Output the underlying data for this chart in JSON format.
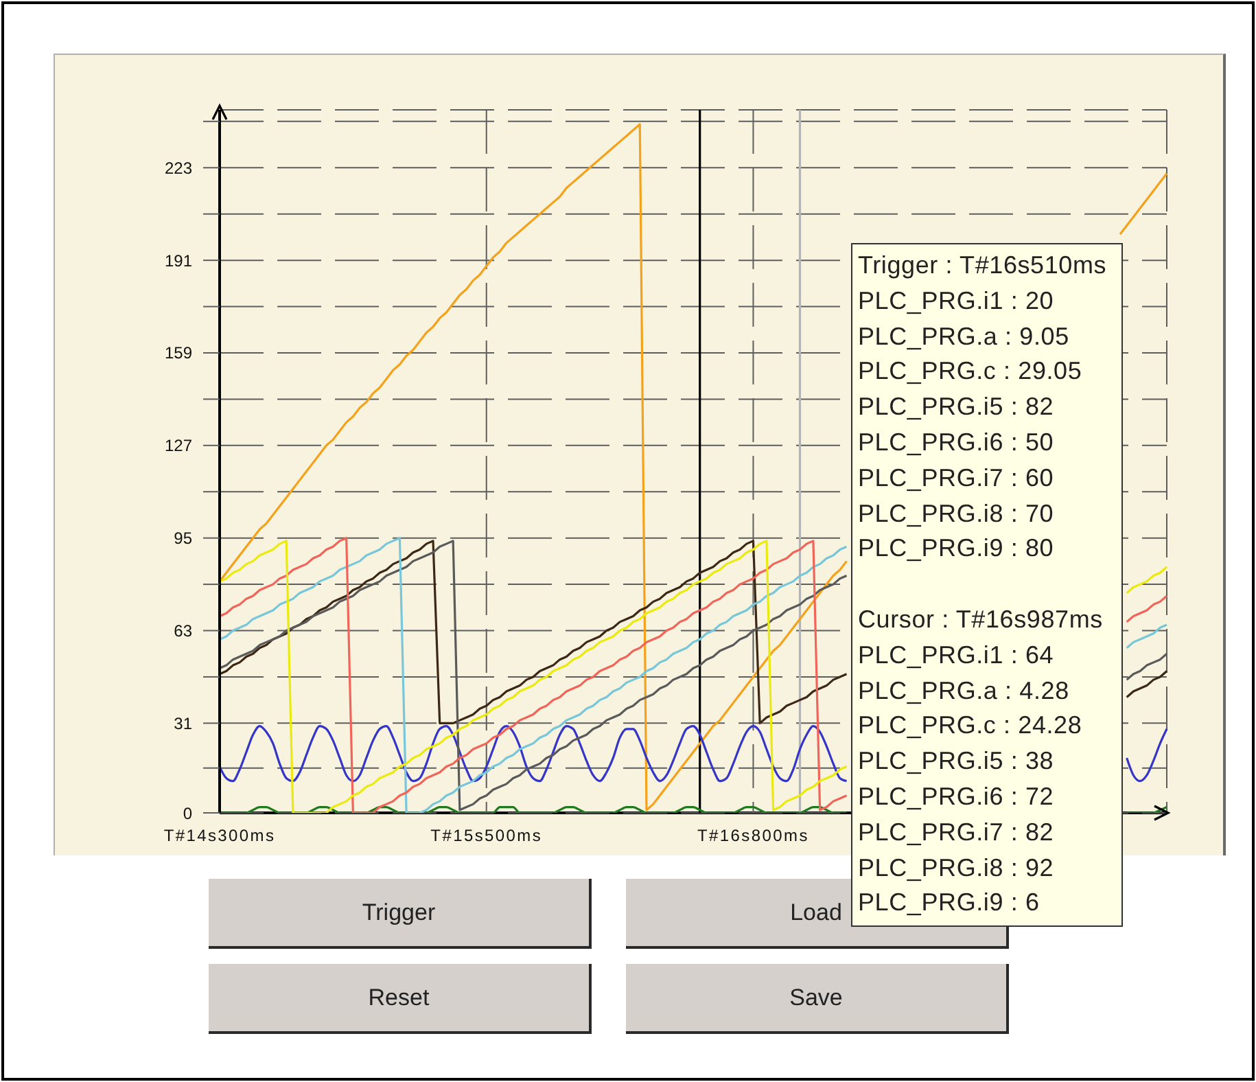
{
  "chart_data": {
    "type": "line",
    "categories": [
      "T#14s300ms",
      null,
      null,
      null,
      null,
      null,
      null,
      null,
      null,
      null,
      null,
      null,
      null,
      null,
      null,
      null,
      null,
      null,
      null,
      null,
      null,
      null,
      null,
      null,
      null,
      null,
      null,
      null,
      null,
      null,
      null,
      null,
      null,
      null,
      null,
      null,
      null,
      null,
      null,
      null,
      "T#15s500ms",
      null,
      null,
      null,
      null,
      null,
      null,
      null,
      null,
      null,
      null,
      null,
      null,
      null,
      null,
      null,
      null,
      null,
      null,
      null,
      null,
      null,
      null,
      null,
      null,
      null,
      null,
      null,
      null,
      null,
      null,
      null,
      null,
      null,
      null,
      null,
      null,
      null,
      null,
      null,
      "T#16s800ms",
      null,
      null,
      null,
      null,
      null,
      null,
      null,
      null,
      null,
      null,
      null,
      null,
      null,
      null,
      null,
      null,
      null,
      null,
      null,
      null,
      null,
      null,
      null,
      null,
      null,
      null,
      null,
      null,
      null,
      null,
      null,
      null,
      null,
      null,
      null,
      null,
      null,
      null,
      null,
      null,
      null,
      null,
      null,
      null,
      null,
      null,
      null,
      null,
      null,
      null,
      null,
      null,
      null,
      null,
      null,
      null,
      null,
      null,
      null,
      null,
      null,
      null
    ],
    "ylim": [
      0,
      243
    ],
    "yticks": [
      0,
      {
        "value": 15.5,
        "label": null
      },
      31,
      {
        "value": 47,
        "label": null
      },
      63,
      {
        "value": 79,
        "label": null
      },
      95,
      {
        "value": 111,
        "label": null
      },
      127,
      {
        "value": 143,
        "label": null
      },
      159,
      {
        "value": 175,
        "label": null
      },
      191,
      {
        "value": 207,
        "label": null
      },
      223,
      {
        "value": 239,
        "label": null
      }
    ],
    "grid": true,
    "series": [
      {
        "color": "#f4a21c",
        "values": [
          80,
          83,
          86,
          89,
          92,
          95,
          98,
          100,
          103,
          106,
          109,
          112,
          115,
          118,
          121,
          124,
          127,
          129,
          132,
          135,
          137,
          140,
          142,
          145,
          147,
          150,
          153,
          155,
          158,
          160,
          163,
          166,
          168,
          171,
          173,
          176,
          179,
          181,
          184,
          186,
          189,
          192,
          194,
          197,
          199,
          201,
          203,
          205,
          207,
          209,
          211,
          213,
          216,
          218,
          220,
          222,
          224,
          226,
          228,
          230,
          232,
          234,
          236,
          238,
          1,
          3,
          6,
          9,
          12,
          15,
          18,
          21,
          24,
          27,
          30,
          32,
          35,
          38,
          41,
          44,
          47,
          50,
          53,
          56,
          58,
          61,
          64,
          67,
          70,
          73,
          76,
          79,
          82,
          84,
          87,
          null,
          null,
          null,
          null,
          null,
          null,
          null,
          null,
          null,
          null,
          null,
          null,
          null,
          null,
          null,
          null,
          null,
          null,
          null,
          null,
          null,
          null,
          null,
          null,
          null,
          null,
          null,
          null,
          null,
          null,
          null,
          null,
          null,
          null,
          null,
          null,
          null,
          null,
          null,
          null,
          200,
          203,
          206,
          209,
          212,
          215,
          218,
          221
        ]
      },
      {
        "color": "#1f7a1f",
        "values": [
          0,
          0,
          0,
          0,
          0,
          1,
          2,
          2,
          1,
          0,
          0,
          0,
          0,
          0,
          1,
          2,
          2,
          1,
          0,
          0,
          0,
          0,
          0,
          1,
          2,
          2,
          1,
          0,
          0,
          0,
          0,
          0,
          1,
          2,
          2,
          1,
          0,
          0,
          0,
          0,
          0,
          0,
          2,
          2,
          2,
          0,
          0,
          0,
          0,
          0,
          0,
          1,
          2,
          2,
          1,
          0,
          0,
          0,
          0,
          0,
          1,
          2,
          2,
          1,
          0,
          0,
          0,
          0,
          0,
          1,
          2,
          2,
          1,
          0,
          0,
          0,
          0,
          0,
          1,
          2,
          2,
          1,
          0,
          0,
          0,
          0,
          0,
          0,
          1,
          2,
          2,
          1,
          0,
          0,
          0,
          null,
          null,
          null,
          null,
          null,
          null,
          null,
          null,
          null,
          null,
          null,
          null,
          null,
          null,
          null,
          null,
          null,
          null,
          null,
          null,
          null,
          null,
          null,
          null,
          null,
          null,
          null,
          null,
          null,
          null,
          null,
          null,
          null,
          null,
          null,
          null,
          null,
          null,
          null,
          null,
          null,
          0,
          0,
          0,
          0,
          0,
          1,
          2
        ]
      },
      {
        "color": "#3535c8",
        "values": [
          16,
          12,
          11,
          15,
          21,
          27,
          30,
          28,
          24,
          17,
          12,
          11,
          14,
          20,
          26,
          30,
          29,
          25,
          19,
          13,
          11,
          13,
          19,
          25,
          29,
          30,
          26,
          20,
          14,
          11,
          12,
          17,
          24,
          29,
          30,
          27,
          21,
          15,
          11,
          12,
          16,
          22,
          28,
          30,
          28,
          23,
          16,
          12,
          11,
          15,
          21,
          27,
          30,
          29,
          24,
          18,
          13,
          11,
          14,
          19,
          26,
          29,
          29,
          25,
          19,
          14,
          11,
          13,
          18,
          24,
          29,
          30,
          27,
          21,
          15,
          11,
          12,
          17,
          23,
          28,
          30,
          28,
          22,
          16,
          12,
          11,
          15,
          22,
          27,
          30,
          28,
          23,
          17,
          12,
          11,
          null,
          null,
          null,
          null,
          null,
          null,
          null,
          null,
          null,
          null,
          null,
          null,
          null,
          null,
          null,
          null,
          null,
          null,
          null,
          null,
          null,
          null,
          null,
          null,
          null,
          null,
          null,
          null,
          null,
          null,
          null,
          null,
          null,
          null,
          null,
          null,
          null,
          null,
          null,
          null,
          null,
          19,
          13,
          11,
          13,
          18,
          24,
          29
        ]
      },
      {
        "color": "#3c2814",
        "values": [
          48,
          49,
          51,
          52,
          54,
          55,
          57,
          58,
          60,
          61,
          62,
          64,
          65,
          67,
          68,
          70,
          71,
          73,
          74,
          75,
          77,
          78,
          80,
          81,
          83,
          84,
          86,
          87,
          88,
          90,
          91,
          93,
          94,
          31,
          31,
          31,
          32,
          33,
          34,
          36,
          37,
          39,
          40,
          42,
          43,
          44,
          46,
          47,
          49,
          50,
          51,
          53,
          54,
          56,
          57,
          59,
          60,
          61,
          63,
          64,
          66,
          67,
          68,
          70,
          71,
          73,
          74,
          76,
          77,
          78,
          80,
          81,
          83,
          84,
          85,
          87,
          88,
          90,
          91,
          93,
          94,
          31,
          33,
          34,
          35,
          37,
          38,
          39,
          40,
          42,
          43,
          44,
          46,
          47,
          48,
          null,
          null,
          null,
          null,
          null,
          null,
          null,
          null,
          null,
          null,
          null,
          null,
          null,
          null,
          null,
          null,
          null,
          null,
          null,
          null,
          null,
          null,
          null,
          null,
          null,
          null,
          null,
          null,
          null,
          null,
          null,
          null,
          null,
          null,
          null,
          null,
          null,
          null,
          null,
          null,
          null,
          40,
          42,
          43,
          44,
          46,
          47,
          49
        ]
      },
      {
        "color": "#5a5a5a",
        "values": [
          50,
          51,
          53,
          54,
          55,
          56,
          58,
          59,
          60,
          61,
          63,
          64,
          65,
          66,
          68,
          69,
          70,
          71,
          73,
          74,
          75,
          77,
          78,
          79,
          80,
          82,
          83,
          84,
          85,
          87,
          88,
          89,
          90,
          92,
          93,
          94,
          1,
          2,
          3,
          5,
          6,
          8,
          9,
          10,
          12,
          13,
          15,
          16,
          17,
          19,
          20,
          22,
          23,
          25,
          26,
          27,
          29,
          30,
          32,
          33,
          34,
          36,
          37,
          39,
          40,
          41,
          43,
          44,
          46,
          47,
          48,
          50,
          51,
          53,
          54,
          56,
          57,
          58,
          60,
          61,
          63,
          64,
          65,
          67,
          68,
          70,
          71,
          72,
          74,
          75,
          77,
          78,
          79,
          81,
          82,
          null,
          null,
          null,
          null,
          null,
          null,
          null,
          null,
          null,
          null,
          null,
          null,
          null,
          null,
          null,
          null,
          null,
          null,
          null,
          null,
          null,
          null,
          null,
          null,
          null,
          null,
          null,
          null,
          null,
          null,
          null,
          null,
          null,
          null,
          null,
          null,
          null,
          null,
          null,
          null,
          null,
          46,
          48,
          49,
          51,
          52,
          53,
          55
        ]
      },
      {
        "color": "#78c6da",
        "values": [
          60,
          61,
          63,
          64,
          65,
          67,
          68,
          69,
          70,
          72,
          73,
          74,
          76,
          77,
          78,
          80,
          81,
          82,
          84,
          85,
          86,
          87,
          89,
          90,
          91,
          93,
          94,
          95,
          0,
          0,
          0,
          1,
          3,
          4,
          6,
          7,
          9,
          10,
          11,
          13,
          14,
          16,
          17,
          19,
          20,
          22,
          23,
          24,
          26,
          27,
          29,
          30,
          32,
          33,
          34,
          36,
          37,
          39,
          40,
          42,
          43,
          45,
          46,
          47,
          49,
          50,
          52,
          53,
          55,
          56,
          57,
          59,
          60,
          62,
          63,
          65,
          66,
          68,
          69,
          70,
          72,
          73,
          75,
          76,
          78,
          79,
          80,
          82,
          83,
          85,
          86,
          88,
          89,
          91,
          92,
          null,
          null,
          null,
          null,
          null,
          null,
          null,
          null,
          null,
          null,
          null,
          null,
          null,
          null,
          null,
          null,
          null,
          null,
          null,
          null,
          null,
          null,
          null,
          null,
          null,
          null,
          null,
          null,
          null,
          null,
          null,
          null,
          null,
          null,
          null,
          null,
          null,
          null,
          null,
          null,
          null,
          57,
          59,
          60,
          61,
          62,
          64,
          65
        ]
      },
      {
        "color": "#f0645a",
        "values": [
          68,
          69,
          71,
          72,
          74,
          75,
          77,
          78,
          79,
          81,
          82,
          84,
          85,
          86,
          88,
          89,
          91,
          92,
          94,
          95,
          0,
          0,
          0,
          0,
          2,
          3,
          4,
          6,
          7,
          9,
          10,
          12,
          13,
          14,
          16,
          17,
          19,
          20,
          22,
          23,
          24,
          26,
          27,
          29,
          30,
          32,
          33,
          34,
          36,
          37,
          39,
          40,
          42,
          43,
          44,
          46,
          47,
          49,
          50,
          51,
          53,
          54,
          56,
          57,
          59,
          60,
          61,
          63,
          64,
          66,
          67,
          69,
          70,
          71,
          73,
          74,
          76,
          77,
          79,
          80,
          81,
          83,
          84,
          86,
          87,
          88,
          90,
          91,
          93,
          94,
          1,
          2,
          4,
          5,
          6,
          null,
          null,
          null,
          null,
          null,
          null,
          null,
          null,
          null,
          null,
          null,
          null,
          null,
          null,
          null,
          null,
          null,
          null,
          null,
          null,
          null,
          null,
          null,
          null,
          null,
          null,
          null,
          null,
          null,
          null,
          null,
          null,
          null,
          null,
          null,
          null,
          null,
          null,
          null,
          null,
          null,
          66,
          68,
          69,
          70,
          72,
          73,
          75
        ]
      },
      {
        "color": "#eaea10",
        "values": [
          80,
          81,
          83,
          84,
          86,
          87,
          89,
          90,
          91,
          93,
          94,
          0,
          0,
          0,
          0,
          0,
          0,
          2,
          3,
          4,
          6,
          7,
          9,
          10,
          12,
          13,
          14,
          16,
          17,
          19,
          20,
          22,
          23,
          24,
          26,
          27,
          29,
          30,
          32,
          33,
          34,
          36,
          37,
          39,
          40,
          42,
          43,
          44,
          46,
          47,
          49,
          50,
          51,
          53,
          54,
          56,
          57,
          59,
          60,
          61,
          63,
          64,
          66,
          67,
          69,
          70,
          71,
          73,
          74,
          76,
          77,
          79,
          80,
          81,
          83,
          84,
          86,
          87,
          88,
          90,
          91,
          93,
          94,
          1,
          2,
          4,
          5,
          6,
          8,
          9,
          11,
          12,
          13,
          15,
          16,
          null,
          null,
          null,
          null,
          null,
          null,
          null,
          null,
          null,
          null,
          null,
          null,
          null,
          null,
          null,
          null,
          null,
          null,
          null,
          null,
          null,
          null,
          null,
          null,
          null,
          null,
          null,
          null,
          null,
          null,
          null,
          null,
          null,
          null,
          null,
          null,
          null,
          null,
          null,
          null,
          null,
          76,
          78,
          79,
          80,
          82,
          83,
          85
        ]
      }
    ],
    "annotations": [
      "Trigger : T#16s510ms",
      "PLC_PRG.i1 : 20",
      "PLC_PRG.a : 9.05",
      "PLC_PRG.c : 29.05",
      "PLC_PRG.i5 : 82",
      "PLC_PRG.i6 : 50",
      "PLC_PRG.i7 : 60",
      "PLC_PRG.i8 : 70",
      "PLC_PRG.i9 : 80",
      "Cursor : T#16s987ms",
      "PLC_PRG.i1 : 64",
      "PLC_PRG.a : 4.28",
      "PLC_PRG.c : 24.28",
      "PLC_PRG.i5 : 38",
      "PLC_PRG.i6 : 72",
      "PLC_PRG.i7 : 82",
      "PLC_PRG.i8 : 92",
      "PLC_PRG.i9 : 6",
      "Trigger",
      "Load",
      "Reset",
      "Save"
    ]
  }
}
